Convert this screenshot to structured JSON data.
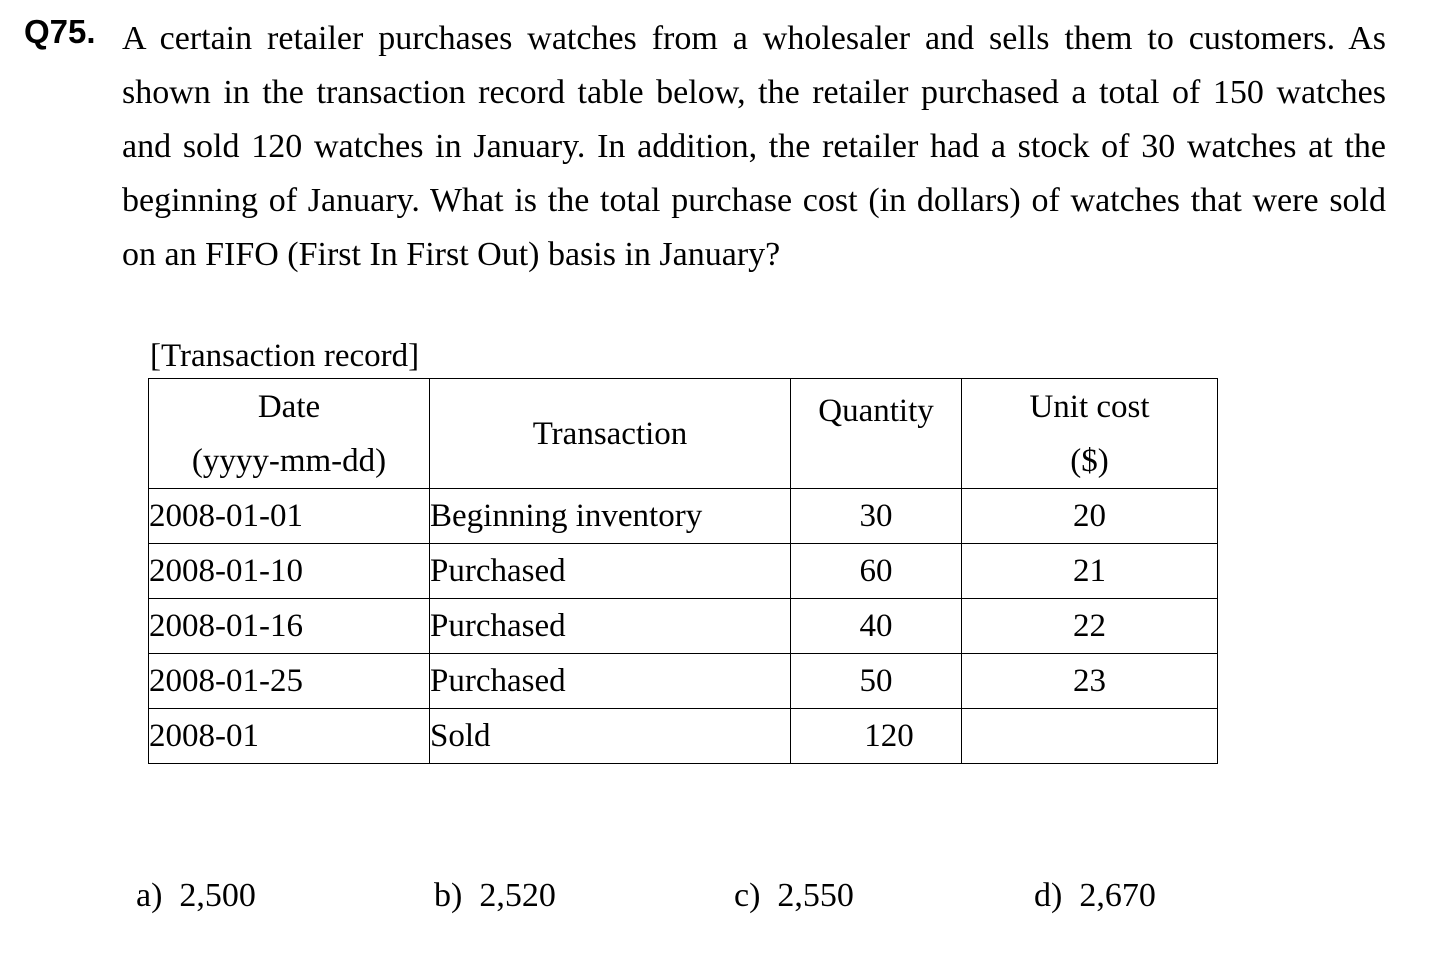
{
  "question": {
    "number": "Q75.",
    "text": "A certain retailer purchases watches from a wholesaler and sells them to customers. As shown in the transaction record table below, the retailer purchased a total of 150 watches and sold 120 watches in January.   In addition, the retailer had a stock of 30 watches at the beginning of January.   What is the total purchase cost (in dollars) of watches that were sold on an FIFO (First In First Out) basis in January?"
  },
  "table": {
    "caption": "[Transaction record]",
    "headers": {
      "date_line1": "Date",
      "date_line2": "(yyyy-mm-dd)",
      "transaction": "Transaction",
      "quantity": "Quantity",
      "unit_cost_line1": "Unit cost",
      "unit_cost_line2": "($)"
    },
    "rows": [
      {
        "date": "2008-01-01",
        "transaction": "Beginning inventory",
        "quantity": "30",
        "unit_cost": "20"
      },
      {
        "date": "2008-01-10",
        "transaction": "Purchased",
        "quantity": "60",
        "unit_cost": "21"
      },
      {
        "date": "2008-01-16",
        "transaction": "Purchased",
        "quantity": "40",
        "unit_cost": "22"
      },
      {
        "date": "2008-01-25",
        "transaction": "Purchased",
        "quantity": "50",
        "unit_cost": "23"
      },
      {
        "date": "2008-01",
        "transaction": "Sold",
        "quantity": "120",
        "unit_cost": ""
      }
    ]
  },
  "options": [
    {
      "label": "a)",
      "value": "2,500"
    },
    {
      "label": "b)",
      "value": "2,520"
    },
    {
      "label": "c)",
      "value": "2,550"
    },
    {
      "label": "d)",
      "value": "2,670"
    }
  ]
}
